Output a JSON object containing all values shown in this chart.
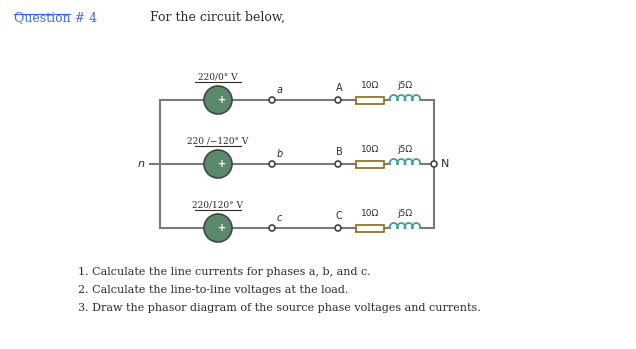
{
  "title": "Question # 4",
  "subtitle": "For the circuit below,",
  "bg_color": "#ffffff",
  "source_voltages": [
    "220/0° V",
    "220 /−120° V",
    "220/120° V"
  ],
  "phase_labels": [
    "a",
    "b",
    "c"
  ],
  "load_phase_labels": [
    "A",
    "B",
    "C"
  ],
  "impedance_R": "10Ω",
  "impedance_X": "j5Ω",
  "question_color": "#4169e1",
  "text_color": "#2c2c2c",
  "source_fill": "#5a8a6a",
  "wire_color": "#7a7a7a",
  "resistor_color": "#8b6914",
  "inductor_color": "#4a9a9a",
  "questions_proper": [
    "1. Calculate the line currents for phases a, b, and c.",
    "2. Calculate the line-to-line voltages at the load.",
    "3. Draw the phasor diagram of the source phase voltages and currents."
  ]
}
